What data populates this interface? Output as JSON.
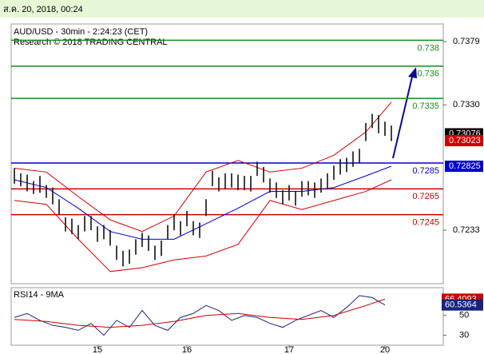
{
  "timestamp": "ส.ค. 20, 2018, 00:24",
  "chart_data": {
    "type": "ohlc",
    "title": "AUD/USD - 30min - 2:24:23 (CET)",
    "subtitle": "Research © 2018 TRADING CENTRAL",
    "categories": [
      null,
      null,
      null,
      null,
      null,
      null,
      null,
      null,
      null,
      null,
      null,
      null,
      null,
      "15",
      null,
      null,
      null,
      null,
      null,
      null,
      null,
      null,
      null,
      null,
      null,
      null,
      null,
      "16",
      null,
      null,
      null,
      null,
      null,
      null,
      null,
      null,
      null,
      null,
      null,
      null,
      null,
      null,
      null,
      "17",
      null,
      null,
      null,
      null,
      null,
      null,
      null,
      null,
      null,
      null,
      null,
      null,
      null,
      null,
      "20",
      null
    ],
    "high": [
      0.7281,
      0.7277,
      0.7276,
      0.7271,
      0.7275,
      0.7268,
      0.7266,
      0.7257,
      0.7243,
      0.7242,
      0.7237,
      0.7244,
      0.7244,
      0.7236,
      0.7237,
      0.7233,
      0.7221,
      0.7217,
      0.7218,
      0.7226,
      0.7231,
      0.7229,
      0.7221,
      0.7225,
      0.7237,
      0.7245,
      0.724,
      0.7248,
      0.724,
      0.7239,
      0.7257,
      0.7279,
      0.7274,
      0.7277,
      0.7277,
      0.7276,
      0.7275,
      0.7275,
      0.7286,
      0.7282,
      0.7273,
      0.727,
      0.7264,
      0.7268,
      0.7263,
      0.7271,
      0.7271,
      0.727,
      0.7273,
      0.7277,
      0.7283,
      0.7288,
      0.7289,
      0.7294,
      0.7296,
      0.7316,
      0.7323,
      0.7322,
      0.7317,
      0.7314
    ],
    "low": [
      0.7269,
      0.7267,
      0.7263,
      0.7261,
      0.7262,
      0.7258,
      0.7253,
      0.7245,
      0.7232,
      0.723,
      0.7226,
      0.7232,
      0.7233,
      0.7224,
      0.7226,
      0.7221,
      0.721,
      0.7205,
      0.7207,
      0.7214,
      0.722,
      0.7217,
      0.721,
      0.7213,
      0.7226,
      0.7233,
      0.7229,
      0.7236,
      0.7229,
      0.7227,
      0.7244,
      0.7267,
      0.7263,
      0.7265,
      0.7266,
      0.7264,
      0.7264,
      0.7263,
      0.7275,
      0.727,
      0.7262,
      0.7258,
      0.7253,
      0.7256,
      0.7252,
      0.7259,
      0.726,
      0.7258,
      0.7262,
      0.7265,
      0.7272,
      0.7276,
      0.7278,
      0.7282,
      0.7285,
      0.7302,
      0.7312,
      0.7308,
      0.7306,
      0.7302
    ],
    "bar_color": "#111111",
    "bands": [
      {
        "color": "#cc0000",
        "x": [
          0,
          5,
          10,
          15,
          20,
          25,
          30,
          35,
          40,
          45,
          50,
          55,
          59
        ],
        "values": [
          0.7281,
          0.7278,
          0.7259,
          0.7241,
          0.7232,
          0.7244,
          0.7278,
          0.7287,
          0.7278,
          0.7281,
          0.7291,
          0.7309,
          0.7332
        ]
      },
      {
        "color": "#cc0000",
        "x": [
          0,
          5,
          10,
          15,
          20,
          25,
          30,
          35,
          40,
          45,
          50,
          55,
          59
        ],
        "values": [
          0.7256,
          0.7253,
          0.7226,
          0.7201,
          0.7204,
          0.721,
          0.7213,
          0.7222,
          0.7256,
          0.7249,
          0.7256,
          0.7263,
          0.7272
        ]
      },
      {
        "color": "#0000cc",
        "x": [
          0,
          5,
          10,
          15,
          20,
          25,
          30,
          35,
          40,
          45,
          50,
          55,
          59
        ],
        "values": [
          0.7272,
          0.7266,
          0.725,
          0.7232,
          0.7226,
          0.7226,
          0.7238,
          0.725,
          0.7263,
          0.7263,
          0.7266,
          0.7275,
          0.72825
        ]
      }
    ],
    "levels": [
      {
        "value": 0.738,
        "color": "#1a8a1a"
      },
      {
        "value": 0.736,
        "color": "#1a8a1a"
      },
      {
        "value": 0.7335,
        "color": "#1a8a1a"
      },
      {
        "value": 0.7285,
        "color": "#0000cc"
      },
      {
        "value": 0.7265,
        "color": "#cc0000"
      },
      {
        "value": 0.7245,
        "color": "#cc0000"
      }
    ],
    "markers": [
      {
        "value": 0.73076,
        "color": "#000000"
      },
      {
        "value": 0.73023,
        "color": "#cc0000"
      },
      {
        "value": 0.72825,
        "color": "#0000cc"
      }
    ],
    "ylim": [
      0.71916,
      0.73926
    ],
    "yticks": [
      0.7379,
      {
        "value": 0.733,
        "label": "0.7330"
      },
      0.7233
    ],
    "rsi": {
      "title": "RSI14 - 9MA",
      "ylim": [
        20,
        78
      ],
      "yticks": [
        50,
        30
      ],
      "line": {
        "color": "#1a237e",
        "x": [
          0,
          2,
          4,
          6,
          8,
          10,
          12,
          14,
          16,
          18,
          20,
          22,
          24,
          26,
          28,
          30,
          32,
          34,
          36,
          38,
          40,
          42,
          44,
          46,
          48,
          50,
          52,
          54,
          56,
          58
        ],
        "values": [
          48,
          52,
          45,
          40,
          38,
          35,
          42,
          30,
          45,
          38,
          55,
          40,
          35,
          48,
          52,
          60,
          55,
          45,
          50,
          48,
          42,
          38,
          45,
          50,
          55,
          48,
          58,
          70,
          68,
          60.5364
        ]
      },
      "ma": {
        "color": "#cc0000",
        "x": [
          0,
          5,
          10,
          15,
          20,
          25,
          30,
          35,
          40,
          45,
          50,
          55,
          58
        ],
        "values": [
          46,
          44,
          40,
          38,
          40,
          44,
          50,
          52,
          48,
          46,
          50,
          60,
          66.4093
        ]
      }
    }
  }
}
